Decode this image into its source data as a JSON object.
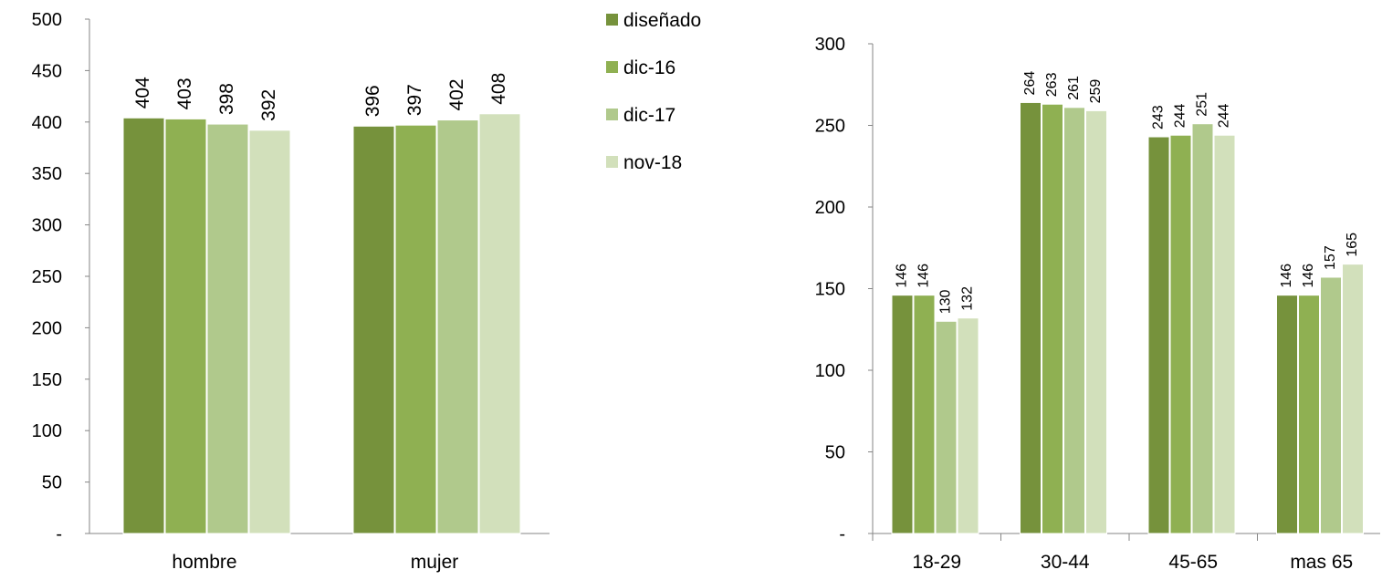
{
  "legend": {
    "position": "top-center",
    "items": [
      {
        "label": "diseñado",
        "color": "#76923c"
      },
      {
        "label": "dic-16",
        "color": "#8fb052"
      },
      {
        "label": "dic-17",
        "color": "#b0c98c"
      },
      {
        "label": "nov-18",
        "color": "#d2e0bb"
      }
    ]
  },
  "chart_data": [
    {
      "type": "bar",
      "categories": [
        "hombre",
        "mujer"
      ],
      "series": [
        {
          "name": "diseñado",
          "values": [
            404,
            396
          ]
        },
        {
          "name": "dic-16",
          "values": [
            403,
            397
          ]
        },
        {
          "name": "dic-17",
          "values": [
            398,
            402
          ]
        },
        {
          "name": "nov-18",
          "values": [
            392,
            408
          ]
        }
      ],
      "ylim": [
        0,
        500
      ],
      "yticks": [
        0,
        50,
        100,
        150,
        200,
        250,
        300,
        350,
        400,
        450,
        500
      ],
      "ytick_labels": [
        "-",
        "50",
        "100",
        "150",
        "200",
        "250",
        "300",
        "350",
        "400",
        "450",
        "500"
      ],
      "data_labels": "rotated",
      "grid": false
    },
    {
      "type": "bar",
      "categories": [
        "18-29",
        "30-44",
        "45-65",
        "mas 65"
      ],
      "series": [
        {
          "name": "diseñado",
          "values": [
            146,
            264,
            243,
            146
          ]
        },
        {
          "name": "dic-16",
          "values": [
            146,
            263,
            244,
            146
          ]
        },
        {
          "name": "dic-17",
          "values": [
            130,
            261,
            251,
            157
          ]
        },
        {
          "name": "nov-18",
          "values": [
            132,
            259,
            244,
            165
          ]
        }
      ],
      "ylim": [
        0,
        300
      ],
      "yticks": [
        0,
        50,
        100,
        150,
        200,
        250,
        300
      ],
      "ytick_labels": [
        "-",
        "50",
        "100",
        "150",
        "200",
        "250",
        "300"
      ],
      "data_labels": "rotated",
      "grid": false
    }
  ]
}
